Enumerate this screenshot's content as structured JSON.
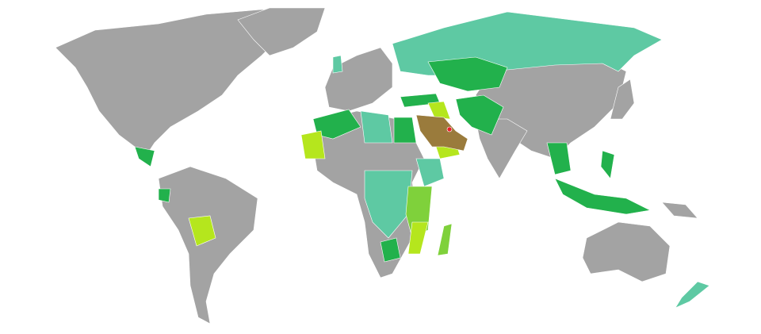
{
  "map": {
    "colors": {
      "home": "#e8202a",
      "free_movement": "#9a7b3c",
      "visa_free": "#22b14c",
      "visa_on_arrival": "#5ec9a3",
      "evisa": "#7fd13b",
      "visa_on_arrival_or_evisa": "#b5e61d",
      "visa_required": "#a3a3a3"
    }
  }
}
